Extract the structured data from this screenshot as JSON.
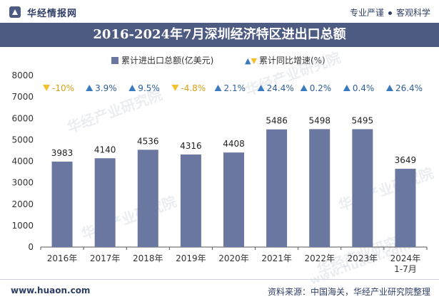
{
  "header": {
    "brand": "华经情报网",
    "slogan_left": "专业严谨",
    "slogan_right": "客观科学"
  },
  "title": "2016-2024年7月深圳经济特区进出口总额",
  "legend": {
    "bar_label": "累计进出口总额(亿美元)",
    "growth_label": "累计同比增速(%)"
  },
  "watermarks": [
    "华经产业研究院",
    "华经产业研究院",
    "华经产业研究院",
    "华经产业研究院",
    "www.huaon.com",
    "华经产业研究院"
  ],
  "footer": {
    "website": "www.huaon.com",
    "source": "资料来源：中国海关，华经产业研究院整理"
  },
  "colors": {
    "bar": "#6a77a1",
    "up": "#3a7bbf",
    "down": "#f2c12e",
    "title_bg": "#4d5a82"
  },
  "chart_data": {
    "type": "bar",
    "categories": [
      "2016年",
      "2017年",
      "2018年",
      "2019年",
      "2020年",
      "2021年",
      "2022年",
      "2023年",
      "2024年\n1-7月"
    ],
    "series": [
      {
        "name": "累计进出口总额(亿美元)",
        "values": [
          3983,
          4140,
          4536,
          4316,
          4408,
          5486,
          5498,
          5495,
          3649
        ]
      },
      {
        "name": "累计同比增速(%)",
        "values": [
          -10,
          3.9,
          9.5,
          -4.8,
          2.1,
          24.4,
          0.2,
          0.4,
          26.4
        ]
      }
    ],
    "growth_labels": [
      "-10%",
      "3.9%",
      "9.5%",
      "-4.8%",
      "2.1%",
      "24.4%",
      "0.2%",
      "0.4%",
      "26.4%"
    ],
    "ylim": [
      0,
      8000
    ],
    "yticks": [
      0,
      1000,
      2000,
      3000,
      4000,
      5000,
      6000,
      7000,
      8000
    ],
    "grid": false
  }
}
